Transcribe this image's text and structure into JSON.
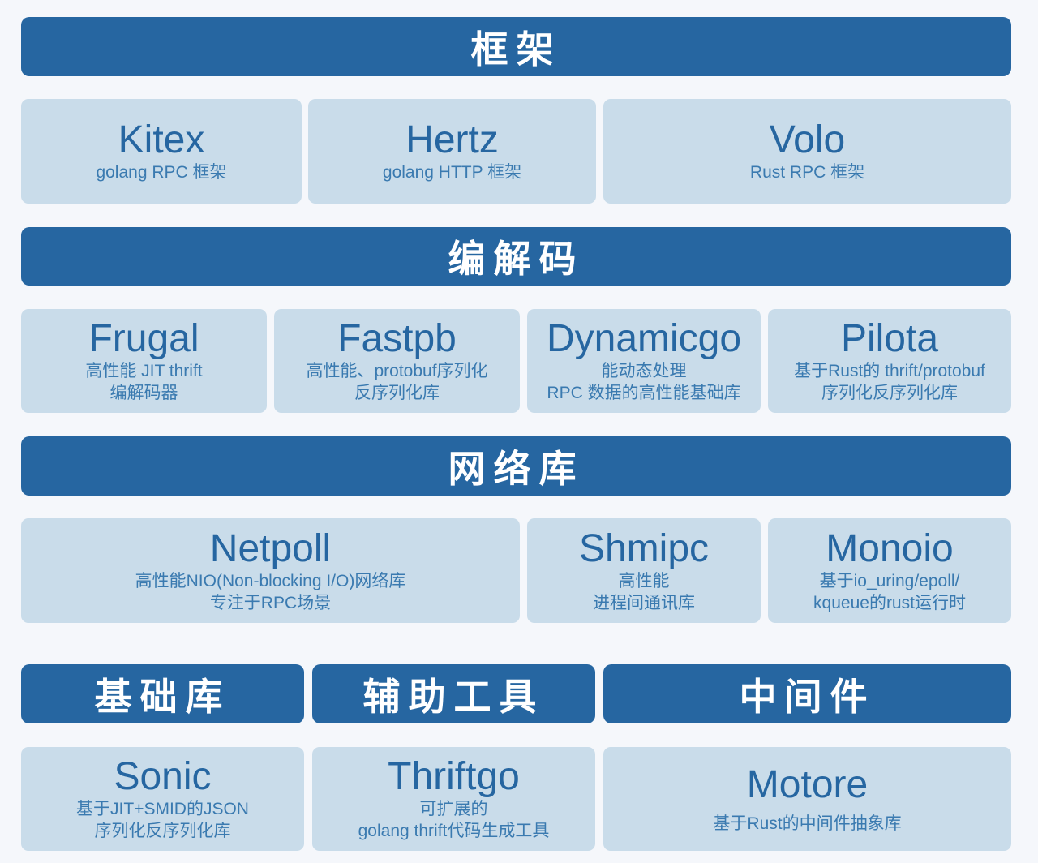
{
  "headers": {
    "framework": "框架",
    "codec": "编解码",
    "network": "网络库",
    "base": "基础库",
    "tools": "辅助工具",
    "middleware": "中间件"
  },
  "framework": [
    {
      "name": "Kitex",
      "desc": "golang RPC 框架"
    },
    {
      "name": "Hertz",
      "desc": "golang HTTP 框架"
    },
    {
      "name": "Volo",
      "desc": "Rust RPC  框架"
    }
  ],
  "codec": [
    {
      "name": "Frugal",
      "desc": "高性能 JIT thrift\n编解码器"
    },
    {
      "name": "Fastpb",
      "desc": "高性能、protobuf序列化\n反序列化库"
    },
    {
      "name": "Dynamicgo",
      "desc": "能动态处理\nRPC 数据的高性能基础库"
    },
    {
      "name": "Pilota",
      "desc": "基于Rust的 thrift/protobuf\n序列化反序列化库"
    }
  ],
  "network": [
    {
      "name": "Netpoll",
      "desc": "高性能NIO(Non-blocking I/O)网络库\n专注于RPC场景"
    },
    {
      "name": "Shmipc",
      "desc": "高性能\n进程间通讯库"
    },
    {
      "name": "Monoio",
      "desc": "基于io_uring/epoll/\nkqueue的rust运行时"
    }
  ],
  "bottom": [
    {
      "name": "Sonic",
      "desc": "基于JIT+SMID的JSON\n序列化反序列化库"
    },
    {
      "name": "Thriftgo",
      "desc": "可扩展的\ngolang thrift代码生成工具"
    },
    {
      "name": "Motore",
      "desc": "基于Rust的中间件抽象库"
    }
  ],
  "colors": {
    "header": "#2666a1",
    "card": "#c9dcea",
    "text": "#2666a1"
  }
}
